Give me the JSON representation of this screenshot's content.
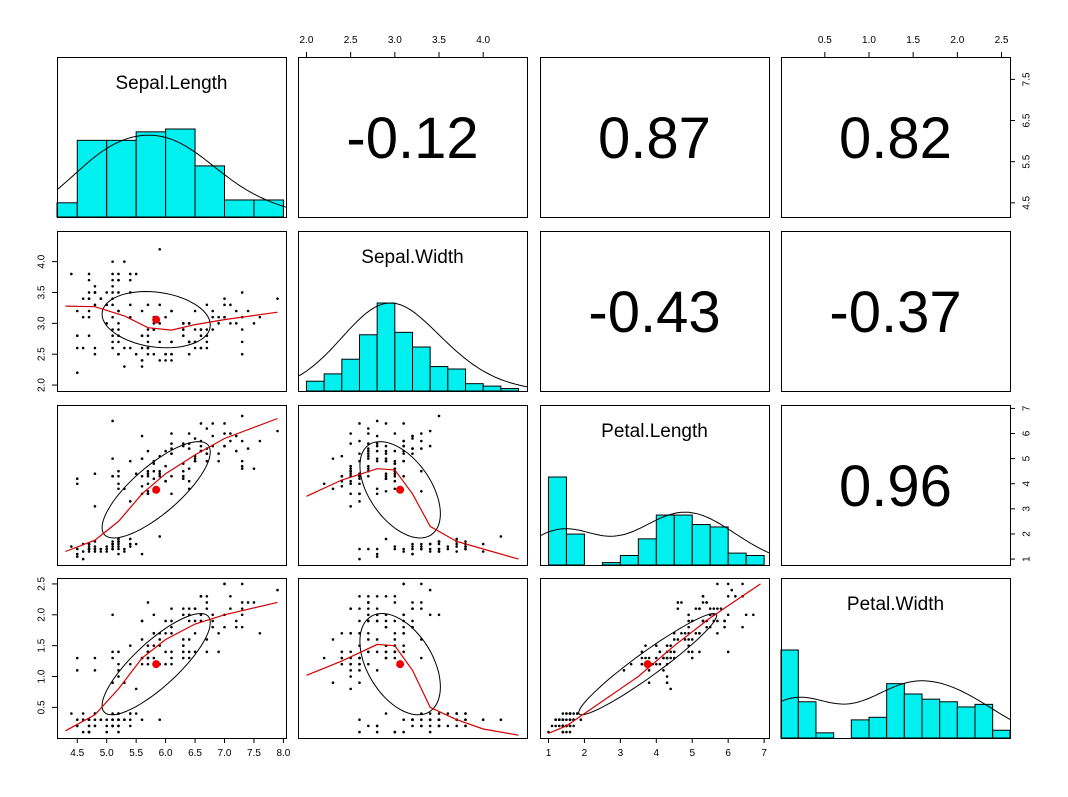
{
  "colors": {
    "hist": "#00f0f0",
    "smooth": "#d40000",
    "point": "#000000",
    "center": "#ee0000"
  },
  "chart_data": {
    "type": "scatter-matrix",
    "title": "",
    "variables": [
      {
        "name": "Sepal.Length",
        "range": [
          4.3,
          7.9
        ],
        "mean": 5.84,
        "ticks": [
          4.5,
          5.0,
          5.5,
          6.0,
          6.5,
          7.0,
          7.5,
          8.0
        ],
        "tick_labels": [
          "4.5",
          "5.0",
          "5.5",
          "6.0",
          "6.5",
          "7.0",
          "7.5",
          "8.0"
        ],
        "right_ticks": [
          4.5,
          5.5,
          6.5,
          7.5
        ],
        "right_tick_labels": [
          "4.5",
          "5.5",
          "6.5",
          "7.5"
        ],
        "hist": {
          "breaks": [
            4.0,
            4.5,
            5.0,
            5.5,
            6.0,
            6.5,
            7.0,
            7.5,
            8.0
          ],
          "counts": [
            5,
            27,
            27,
            30,
            31,
            18,
            6,
            6
          ]
        },
        "density_peak": 0.39
      },
      {
        "name": "Sepal.Width",
        "range": [
          2.0,
          4.4
        ],
        "mean": 3.06,
        "ticks": [
          2.0,
          2.5,
          3.0,
          3.5,
          4.0
        ],
        "tick_labels": [
          "2.0",
          "2.5",
          "3.0",
          "3.5",
          "4.0"
        ],
        "hist": {
          "breaks": [
            2.0,
            2.2,
            2.4,
            2.6,
            2.8,
            3.0,
            3.2,
            3.4,
            3.6,
            3.8,
            4.0,
            4.2,
            4.4
          ],
          "counts": [
            4,
            7,
            13,
            23,
            36,
            24,
            18,
            10,
            9,
            3,
            2,
            1
          ]
        },
        "density_peak": 0.96
      },
      {
        "name": "Petal.Length",
        "range": [
          1.0,
          6.9
        ],
        "mean": 3.76,
        "ticks": [
          1,
          2,
          3,
          4,
          5,
          6,
          7
        ],
        "tick_labels": [
          "1",
          "2",
          "3",
          "4",
          "5",
          "6",
          "7"
        ],
        "right_ticks": [
          1,
          2,
          3,
          4,
          5,
          6,
          7
        ],
        "right_tick_labels": [
          "1",
          "2",
          "3",
          "4",
          "5",
          "6",
          "7"
        ],
        "hist": {
          "breaks": [
            1.0,
            1.5,
            2.0,
            2.5,
            3.0,
            3.5,
            4.0,
            4.5,
            5.0,
            5.5,
            6.0,
            6.5,
            7.0
          ],
          "counts": [
            37,
            13,
            0,
            1,
            4,
            11,
            21,
            21,
            17,
            16,
            5,
            4
          ]
        },
        "density_peak": 0.28
      },
      {
        "name": "Petal.Width",
        "range": [
          0.1,
          2.5
        ],
        "mean": 1.2,
        "ticks": [
          0.5,
          1.0,
          1.5,
          2.0,
          2.5
        ],
        "tick_labels": [
          "0.5",
          "1.0",
          "1.5",
          "2.0",
          "2.5"
        ],
        "hist": {
          "breaks": [
            0.0,
            0.2,
            0.4,
            0.6,
            0.8,
            1.0,
            1.2,
            1.4,
            1.6,
            1.8,
            2.0,
            2.2,
            2.4,
            2.6
          ],
          "counts": [
            34,
            14,
            2,
            0,
            7,
            8,
            21,
            17,
            15,
            14,
            12,
            13,
            3
          ]
        },
        "density_peak": 0.62
      }
    ],
    "correlations": [
      {
        "row": 0,
        "col": 1,
        "text": "-0.12"
      },
      {
        "row": 0,
        "col": 2,
        "text": "0.87"
      },
      {
        "row": 0,
        "col": 3,
        "text": "0.82"
      },
      {
        "row": 1,
        "col": 2,
        "text": "-0.43"
      },
      {
        "row": 1,
        "col": 3,
        "text": "-0.37"
      },
      {
        "row": 2,
        "col": 3,
        "text": "0.96"
      }
    ],
    "panel_axes": {
      "top": [
        1,
        3
      ],
      "bottom": [
        0,
        2
      ],
      "left": [
        1,
        3
      ],
      "right": [
        0,
        2
      ]
    }
  }
}
